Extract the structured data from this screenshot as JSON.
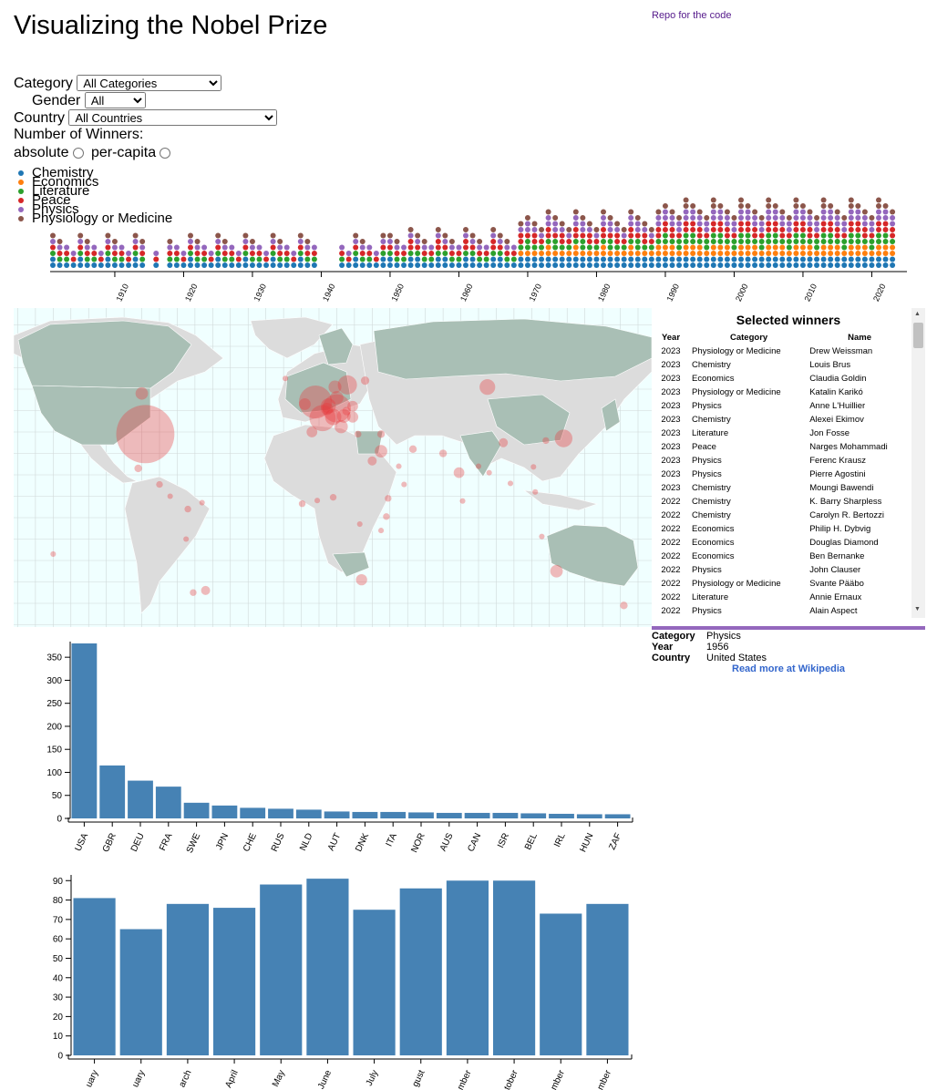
{
  "header": {
    "title": "Visualizing the Nobel Prize",
    "repo_link": "Repo for the code"
  },
  "controls": {
    "category_label": "Category",
    "category_value": "All Categories",
    "gender_label": "Gender",
    "gender_value": "All",
    "country_label": "Country",
    "country_value": "All Countries",
    "winners_label": "Number of Winners:",
    "absolute_label": "absolute",
    "percapita_label": "per-capita"
  },
  "colors": {
    "Chemistry": "#1f77b4",
    "Economics": "#ff7f0e",
    "Literature": "#2ca02c",
    "Peace": "#d62728",
    "Physics": "#9467bd",
    "Physiology or Medicine": "#8c564b",
    "bar": "#4682b4",
    "ocean": "#f0ffff",
    "land": "#dcdcdc",
    "land_highlight": "#a9bfb5",
    "bubble": "#e8383d",
    "info_divider": "#9467bd"
  },
  "legend": [
    "Chemistry",
    "Economics",
    "Literature",
    "Peace",
    "Physics",
    "Physiology or Medicine"
  ],
  "timeline": {
    "tick_labels": [
      "1910",
      "1920",
      "1930",
      "1940",
      "1950",
      "1960",
      "1970",
      "1980",
      "1990",
      "2000",
      "2010",
      "2020"
    ],
    "year_range": [
      1901,
      2023
    ]
  },
  "map": {
    "bubbles": [
      {
        "country": "USA",
        "lon": -98,
        "lat": 39,
        "value": 385
      },
      {
        "country": "GBR",
        "lon": -2,
        "lat": 54,
        "value": 115
      },
      {
        "country": "DEU",
        "lon": 10,
        "lat": 51,
        "value": 82
      },
      {
        "country": "FRA",
        "lon": 2,
        "lat": 46.5,
        "value": 69
      },
      {
        "country": "SWE",
        "lon": 16,
        "lat": 62,
        "value": 34
      },
      {
        "country": "JPN",
        "lon": 138,
        "lat": 37,
        "value": 28
      },
      {
        "country": "CHE",
        "lon": 8,
        "lat": 47,
        "value": 23
      },
      {
        "country": "RUS",
        "lon": 95,
        "lat": 61,
        "value": 21
      },
      {
        "country": "NLD",
        "lon": 5.3,
        "lat": 52.2,
        "value": 19
      },
      {
        "country": "AUT",
        "lon": 14,
        "lat": 47.5,
        "value": 15
      },
      {
        "country": "DNK",
        "lon": 10,
        "lat": 56,
        "value": 14
      },
      {
        "country": "ITA",
        "lon": 12.5,
        "lat": 42.5,
        "value": 14
      },
      {
        "country": "NOR",
        "lon": 9,
        "lat": 61,
        "value": 13
      },
      {
        "country": "AUS",
        "lon": 134,
        "lat": -25,
        "value": 12
      },
      {
        "country": "CAN",
        "lon": -100,
        "lat": 58,
        "value": 12
      },
      {
        "country": "ISR",
        "lon": 35,
        "lat": 31,
        "value": 12
      },
      {
        "country": "BEL",
        "lon": 4.5,
        "lat": 50.8,
        "value": 11
      },
      {
        "country": "IRL",
        "lon": -8,
        "lat": 53,
        "value": 10
      },
      {
        "country": "HUN",
        "lon": 19,
        "lat": 47,
        "value": 9
      },
      {
        "country": "ZAF",
        "lon": 24,
        "lat": -29,
        "value": 9
      },
      {
        "country": "ESP",
        "lon": -4,
        "lat": 40,
        "value": 8
      },
      {
        "country": "POL",
        "lon": 19,
        "lat": 52,
        "value": 8
      },
      {
        "country": "IND",
        "lon": 79,
        "lat": 21,
        "value": 8
      },
      {
        "country": "ARG",
        "lon": -64,
        "lat": -34,
        "value": 5
      },
      {
        "country": "EGY",
        "lon": 30,
        "lat": 26.5,
        "value": 5
      },
      {
        "country": "CHN",
        "lon": 104,
        "lat": 35,
        "value": 5
      },
      {
        "country": "MEX",
        "lon": -102,
        "lat": 23,
        "value": 3
      },
      {
        "country": "TUR",
        "lon": 35,
        "lat": 39,
        "value": 3
      },
      {
        "country": "IRN",
        "lon": 53,
        "lat": 32,
        "value": 3
      },
      {
        "country": "PAK",
        "lon": 70,
        "lat": 30,
        "value": 3
      },
      {
        "country": "KOR",
        "lon": 128,
        "lat": 36,
        "value": 2
      },
      {
        "country": "GRC",
        "lon": 22,
        "lat": 39,
        "value": 2
      },
      {
        "country": "CZE",
        "lon": 15.5,
        "lat": 49.8,
        "value": 4
      },
      {
        "country": "FIN",
        "lon": 26,
        "lat": 64,
        "value": 4
      },
      {
        "country": "NGA",
        "lon": 8,
        "lat": 9.5,
        "value": 2
      },
      {
        "country": "KEN",
        "lon": 38,
        "lat": 0.5,
        "value": 2
      },
      {
        "country": "ETH",
        "lon": 39,
        "lat": 9,
        "value": 2
      },
      {
        "country": "LBR",
        "lon": -9.5,
        "lat": 6.5,
        "value": 2
      },
      {
        "country": "COL",
        "lon": -74,
        "lat": 4,
        "value": 2
      },
      {
        "country": "CHL",
        "lon": -71,
        "lat": -35,
        "value": 2
      },
      {
        "country": "GTM",
        "lon": -90,
        "lat": 15.5,
        "value": 2
      },
      {
        "country": "ISL",
        "lon": -19,
        "lat": 65,
        "value": 1
      },
      {
        "country": "BGD",
        "lon": 90,
        "lat": 24,
        "value": 1
      },
      {
        "country": "MMR",
        "lon": 96,
        "lat": 21,
        "value": 1
      },
      {
        "country": "VNM",
        "lon": 108,
        "lat": 16,
        "value": 1
      },
      {
        "country": "PHL",
        "lon": 122,
        "lat": 12,
        "value": 1
      },
      {
        "country": "TLS",
        "lon": 125.7,
        "lat": -8.8,
        "value": 1
      },
      {
        "country": "YEM",
        "lon": 48,
        "lat": 15.5,
        "value": 1
      },
      {
        "country": "SAU",
        "lon": 45,
        "lat": 24,
        "value": 1
      },
      {
        "country": "VEN",
        "lon": -66,
        "lat": 7,
        "value": 1
      },
      {
        "country": "PER",
        "lon": -75,
        "lat": -10,
        "value": 1
      },
      {
        "country": "CRI",
        "lon": -84,
        "lat": 10,
        "value": 1
      },
      {
        "country": "COD",
        "lon": 23,
        "lat": -3,
        "value": 1
      },
      {
        "country": "GHA",
        "lon": -1,
        "lat": 8,
        "value": 1
      },
      {
        "country": "TZA",
        "lon": 35,
        "lat": -6,
        "value": 1
      },
      {
        "country": "SAM",
        "lon": -150,
        "lat": -17,
        "value": 1
      },
      {
        "country": "TWN",
        "lon": 121,
        "lat": 23.7,
        "value": 1
      },
      {
        "country": "NZL",
        "lon": 172,
        "lat": -41,
        "value": 3
      },
      {
        "country": "LKA",
        "lon": 81,
        "lat": 7.8,
        "value": 1
      }
    ]
  },
  "table": {
    "title": "Selected winners",
    "headers": [
      "Year",
      "Category",
      "Name"
    ],
    "rows": [
      [
        "2023",
        "Physiology or Medicine",
        "Drew Weissman"
      ],
      [
        "2023",
        "Chemistry",
        "Louis Brus"
      ],
      [
        "2023",
        "Economics",
        "Claudia Goldin"
      ],
      [
        "2023",
        "Physiology or Medicine",
        "Katalin Karikó"
      ],
      [
        "2023",
        "Physics",
        "Anne L'Huillier"
      ],
      [
        "2023",
        "Chemistry",
        "Alexei Ekimov"
      ],
      [
        "2023",
        "Literature",
        "Jon Fosse"
      ],
      [
        "2023",
        "Peace",
        "Narges Mohammadi"
      ],
      [
        "2023",
        "Physics",
        "Ferenc Krausz"
      ],
      [
        "2023",
        "Physics",
        "Pierre Agostini"
      ],
      [
        "2023",
        "Chemistry",
        "Moungi Bawendi"
      ],
      [
        "2022",
        "Chemistry",
        "K. Barry Sharpless"
      ],
      [
        "2022",
        "Chemistry",
        "Carolyn R. Bertozzi"
      ],
      [
        "2022",
        "Economics",
        "Philip H. Dybvig"
      ],
      [
        "2022",
        "Economics",
        "Douglas Diamond"
      ],
      [
        "2022",
        "Economics",
        "Ben Bernanke"
      ],
      [
        "2022",
        "Physics",
        "John Clauser"
      ],
      [
        "2022",
        "Physiology or Medicine",
        "Svante Pääbo"
      ],
      [
        "2022",
        "Literature",
        "Annie Ernaux"
      ],
      [
        "2022",
        "Physics",
        "Alain Aspect"
      ]
    ]
  },
  "info": {
    "category_label": "Category",
    "category_value": "Physics",
    "year_label": "Year",
    "year_value": "1956",
    "country_label": "Country",
    "country_value": "United States",
    "wiki_link": "Read more at Wikipedia"
  },
  "chart_data": [
    {
      "type": "bar",
      "title": "",
      "categories": [
        "USA",
        "GBR",
        "DEU",
        "FRA",
        "SWE",
        "JPN",
        "CHE",
        "RUS",
        "NLD",
        "AUT",
        "DNK",
        "ITA",
        "NOR",
        "AUS",
        "CAN",
        "ISR",
        "BEL",
        "IRL",
        "HUN",
        "ZAF"
      ],
      "values": [
        385,
        115,
        82,
        69,
        34,
        28,
        23,
        21,
        19,
        15,
        14,
        14,
        13,
        12,
        12,
        12,
        11,
        10,
        9,
        9
      ],
      "ylim": [
        0,
        380
      ],
      "yticks": [
        0,
        50,
        100,
        150,
        200,
        250,
        300,
        350
      ],
      "xlabel": "",
      "ylabel": ""
    },
    {
      "type": "bar",
      "title": "",
      "categories": [
        "January",
        "February",
        "March",
        "April",
        "May",
        "June",
        "July",
        "August",
        "September",
        "October",
        "November",
        "December"
      ],
      "tick_labels": [
        "uary",
        "uary",
        "arch",
        "April",
        "May",
        "June",
        "July",
        "gust",
        "mber",
        "tober",
        "mber",
        "mber"
      ],
      "values": [
        81,
        65,
        78,
        76,
        88,
        91,
        75,
        86,
        90,
        90,
        73,
        78
      ],
      "ylim": [
        0,
        92
      ],
      "yticks": [
        0,
        10,
        20,
        30,
        40,
        50,
        60,
        70,
        80,
        90
      ],
      "xlabel": "",
      "ylabel": ""
    }
  ]
}
